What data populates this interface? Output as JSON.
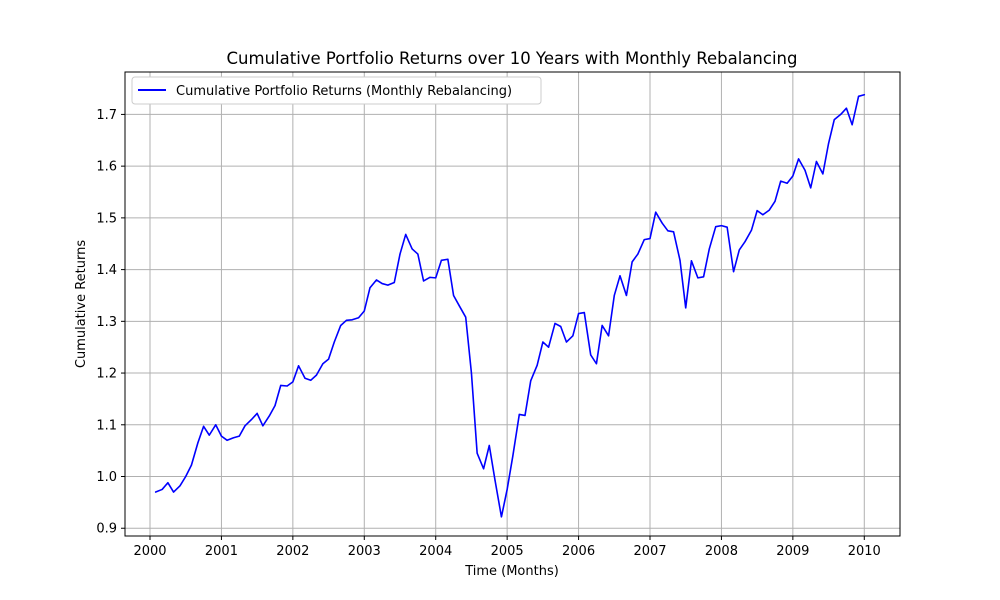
{
  "chart_data": {
    "type": "line",
    "title": "Cumulative Portfolio Returns over 10 Years with Monthly Rebalancing",
    "xlabel": "Time (Months)",
    "ylabel": "Cumulative Returns",
    "x_tick_labels": [
      "2000",
      "2001",
      "2002",
      "2003",
      "2004",
      "2005",
      "2006",
      "2007",
      "2008",
      "2009",
      "2010"
    ],
    "y_tick_labels": [
      "0.9",
      "1.0",
      "1.1",
      "1.2",
      "1.3",
      "1.4",
      "1.5",
      "1.6",
      "1.7"
    ],
    "y_ticks": [
      0.9,
      1.0,
      1.1,
      1.2,
      1.3,
      1.4,
      1.5,
      1.6,
      1.7
    ],
    "xlim": [
      -0.35,
      10.5
    ],
    "ylim": [
      0.885,
      1.782
    ],
    "grid": true,
    "legend_location": "upper-left",
    "series": [
      {
        "name": "Cumulative Portfolio Returns (Monthly Rebalancing)",
        "color": "#0000ff",
        "x": [
          0.08,
          0.17,
          0.25,
          0.33,
          0.42,
          0.5,
          0.58,
          0.67,
          0.75,
          0.83,
          0.92,
          1.0,
          1.08,
          1.17,
          1.25,
          1.33,
          1.42,
          1.5,
          1.58,
          1.67,
          1.75,
          1.83,
          1.92,
          2.0,
          2.08,
          2.17,
          2.25,
          2.33,
          2.42,
          2.5,
          2.58,
          2.67,
          2.75,
          2.83,
          2.92,
          3.0,
          3.08,
          3.17,
          3.25,
          3.33,
          3.42,
          3.5,
          3.58,
          3.67,
          3.75,
          3.83,
          3.92,
          4.0,
          4.08,
          4.17,
          4.25,
          4.33,
          4.42,
          4.5,
          4.58,
          4.67,
          4.75,
          4.83,
          4.92,
          5.0,
          5.08,
          5.17,
          5.25,
          5.33,
          5.42,
          5.5,
          5.58,
          5.67,
          5.75,
          5.83,
          5.92,
          6.0,
          6.08,
          6.17,
          6.25,
          6.33,
          6.42,
          6.5,
          6.58,
          6.67,
          6.75,
          6.83,
          6.92,
          7.0,
          7.08,
          7.17,
          7.25,
          7.33,
          7.42,
          7.5,
          7.58,
          7.67,
          7.75,
          7.83,
          7.92,
          8.0,
          8.08,
          8.17,
          8.25,
          8.33,
          8.42,
          8.5,
          8.58,
          8.67,
          8.75,
          8.83,
          8.92,
          9.0,
          9.08,
          9.17,
          9.25,
          9.33,
          9.42,
          9.5,
          9.58,
          9.67,
          9.75,
          9.83,
          9.92,
          10.0
        ],
        "y": [
          0.97,
          0.975,
          0.988,
          0.97,
          0.982,
          1.0,
          1.022,
          1.065,
          1.097,
          1.08,
          1.1,
          1.078,
          1.07,
          1.075,
          1.078,
          1.098,
          1.11,
          1.122,
          1.098,
          1.117,
          1.137,
          1.176,
          1.175,
          1.183,
          1.214,
          1.19,
          1.186,
          1.196,
          1.218,
          1.227,
          1.26,
          1.292,
          1.302,
          1.303,
          1.307,
          1.32,
          1.365,
          1.38,
          1.373,
          1.37,
          1.375,
          1.43,
          1.468,
          1.44,
          1.43,
          1.378,
          1.385,
          1.384,
          1.418,
          1.42,
          1.35,
          1.33,
          1.308,
          1.2,
          1.045,
          1.015,
          1.06,
          0.993,
          0.922,
          0.975,
          1.04,
          1.12,
          1.118,
          1.185,
          1.215,
          1.26,
          1.25,
          1.296,
          1.29,
          1.26,
          1.272,
          1.315,
          1.317,
          1.235,
          1.218,
          1.292,
          1.272,
          1.35,
          1.388,
          1.35,
          1.415,
          1.43,
          1.458,
          1.46,
          1.511,
          1.49,
          1.475,
          1.473,
          1.418,
          1.326,
          1.417,
          1.384,
          1.386,
          1.44,
          1.483,
          1.485,
          1.482,
          1.396,
          1.438,
          1.454,
          1.476,
          1.514,
          1.506,
          1.515,
          1.532,
          1.571,
          1.567,
          1.581,
          1.614,
          1.592,
          1.558,
          1.609,
          1.585,
          1.644,
          1.69,
          1.7,
          1.712,
          1.68,
          1.735,
          1.738
        ]
      }
    ]
  }
}
